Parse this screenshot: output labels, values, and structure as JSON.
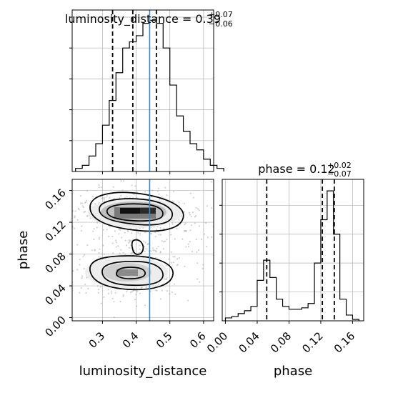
{
  "chart_data": [
    {
      "type": "histogram",
      "panel": "luminosity_distance marginal",
      "title": {
        "param": "luminosity_distance",
        "median": "0.39",
        "plus": "+0.07",
        "minus": "−0.06"
      },
      "x_range": [
        0.21,
        0.63
      ],
      "bin_edges_start": 0.22,
      "bin_width": 0.02,
      "counts": [
        1,
        2,
        5,
        9,
        15,
        23,
        32,
        40,
        42,
        44,
        48,
        49,
        48,
        40,
        28,
        18,
        13,
        9,
        7,
        4,
        2,
        1
      ],
      "max_count": 50,
      "quantiles": [
        0.33,
        0.39,
        0.46
      ],
      "truth": 0.44,
      "grid": true
    },
    {
      "type": "histogram",
      "panel": "phase marginal",
      "title": {
        "param": "phase",
        "median": "0.12",
        "plus": "+0.02",
        "minus": "−0.07"
      },
      "x_range": [
        -0.004,
        0.174
      ],
      "bin_edges_start": 0.0,
      "bin_width": 0.008,
      "counts": [
        2,
        3,
        5,
        7,
        10,
        28,
        42,
        30,
        15,
        10,
        8,
        8,
        9,
        12,
        40,
        70,
        90,
        60,
        15,
        4,
        1
      ],
      "max_count": 95,
      "quantiles": [
        0.052,
        0.122,
        0.137
      ],
      "grid": true
    },
    {
      "type": "2d-density",
      "panel": "phase vs luminosity_distance",
      "x_range": [
        0.21,
        0.63
      ],
      "y_range": [
        -0.004,
        0.174
      ],
      "truth_x": 0.44,
      "grid": true
    }
  ],
  "axes": {
    "x_ld_label": "luminosity_distance",
    "x_phase_label": "phase",
    "y_phase_label": "phase",
    "ld_ticks": [
      "0.3",
      "0.4",
      "0.5",
      "0.6"
    ],
    "phase_ticks": [
      "0.00",
      "0.04",
      "0.08",
      "0.12",
      "0.16"
    ]
  },
  "colors": {
    "truth": "#4682b4",
    "line": "#000000",
    "grid": "#b0b0b0"
  }
}
